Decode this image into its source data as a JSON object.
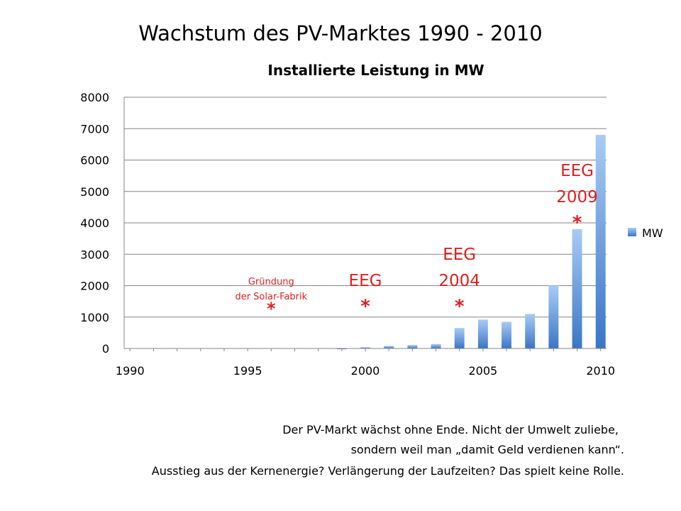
{
  "slide": {
    "title": "Wachstum des PV-Marktes 1990 - 2010",
    "notes": [
      "Der PV-Markt wächst ohne Ende. Nicht der Umwelt zuliebe,",
      "sondern weil man „damit Geld verdienen kann“.",
      "Ausstieg aus der Kernenergie? Verlängerung der Laufzeiten? Das spielt keine Rolle."
    ]
  },
  "chart_data": {
    "type": "bar",
    "title": "Installierte Leistung in MW",
    "xlabel": "",
    "ylabel": "",
    "x": [
      1990,
      1991,
      1992,
      1993,
      1994,
      1995,
      1996,
      1997,
      1998,
      1999,
      2000,
      2001,
      2002,
      2003,
      2004,
      2005,
      2006,
      2007,
      2008,
      2009,
      2010
    ],
    "series": [
      {
        "name": "MW",
        "values": [
          0,
          0,
          0,
          0,
          0,
          0,
          0,
          0,
          0,
          10,
          40,
          80,
          110,
          140,
          650,
          920,
          850,
          1100,
          2000,
          3800,
          6800
        ]
      }
    ],
    "ylim": [
      0,
      8000
    ],
    "yticks": [
      0,
      1000,
      2000,
      3000,
      4000,
      5000,
      6000,
      7000,
      8000
    ],
    "xticks": [
      1990,
      1995,
      2000,
      2005,
      2010
    ],
    "grid": true,
    "legend": "right",
    "annotations": [
      {
        "lines": [
          "Gründung",
          "der Solar-Fabrik",
          "*"
        ],
        "x": 1996,
        "size": "small"
      },
      {
        "lines": [
          "EEG",
          "*"
        ],
        "x": 2000,
        "size": "large"
      },
      {
        "lines": [
          "EEG",
          "2004",
          "*"
        ],
        "x": 2004,
        "size": "large"
      },
      {
        "lines": [
          "EEG",
          "2009",
          "*"
        ],
        "x": 2009,
        "size": "large"
      }
    ],
    "colors": {
      "bar_light": "#a9cbf5",
      "bar_dark": "#3a75c7",
      "annotation": "#e02020",
      "grid": "#868686"
    }
  }
}
